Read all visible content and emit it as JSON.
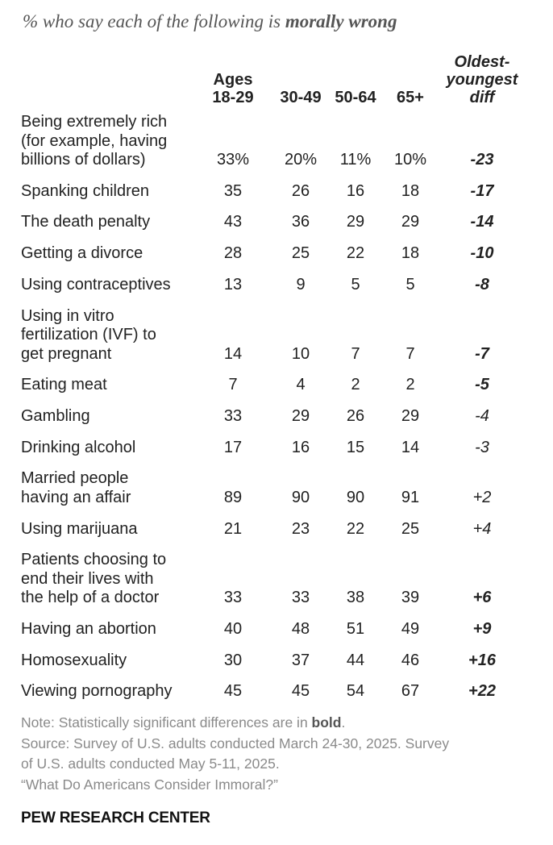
{
  "subtitle": {
    "prefix": "% who say each of the following is ",
    "emphasis": "morally wrong"
  },
  "chart_data": {
    "type": "table",
    "title": "",
    "columns": [
      {
        "key": "a18",
        "label": "Ages 18-29",
        "label_lines": [
          "Ages",
          "18-29"
        ]
      },
      {
        "key": "a30",
        "label": "30-49",
        "label_lines": [
          "30-49"
        ]
      },
      {
        "key": "a50",
        "label": "50-64",
        "label_lines": [
          "50-64"
        ]
      },
      {
        "key": "a65",
        "label": "65+",
        "label_lines": [
          "65+"
        ]
      },
      {
        "key": "diff",
        "label": "Oldest-youngest diff",
        "label_lines": [
          "Oldest-",
          "youngest",
          "diff"
        ]
      }
    ],
    "rows": [
      {
        "label_lines": [
          "Being extremely rich",
          "(for example, having",
          "billions of dollars)"
        ],
        "values": [
          "33%",
          "20%",
          "11%",
          "10%"
        ],
        "diff": "-23",
        "significant": true
      },
      {
        "label_lines": [
          "Spanking children"
        ],
        "values": [
          "35",
          "26",
          "16",
          "18"
        ],
        "diff": "-17",
        "significant": true
      },
      {
        "label_lines": [
          "The death penalty"
        ],
        "values": [
          "43",
          "36",
          "29",
          "29"
        ],
        "diff": "-14",
        "significant": true
      },
      {
        "label_lines": [
          "Getting a divorce"
        ],
        "values": [
          "28",
          "25",
          "22",
          "18"
        ],
        "diff": "-10",
        "significant": true
      },
      {
        "label_lines": [
          "Using contraceptives"
        ],
        "values": [
          "13",
          "9",
          "5",
          "5"
        ],
        "diff": "-8",
        "significant": true
      },
      {
        "label_lines": [
          "Using in vitro",
          "fertilization (IVF) to",
          "get pregnant"
        ],
        "values": [
          "14",
          "10",
          "7",
          "7"
        ],
        "diff": "-7",
        "significant": true
      },
      {
        "label_lines": [
          "Eating meat"
        ],
        "values": [
          "7",
          "4",
          "2",
          "2"
        ],
        "diff": "-5",
        "significant": true
      },
      {
        "label_lines": [
          "Gambling"
        ],
        "values": [
          "33",
          "29",
          "26",
          "29"
        ],
        "diff": "-4",
        "significant": false
      },
      {
        "label_lines": [
          "Drinking alcohol"
        ],
        "values": [
          "17",
          "16",
          "15",
          "14"
        ],
        "diff": "-3",
        "significant": false
      },
      {
        "label_lines": [
          "Married people",
          "having an affair"
        ],
        "values": [
          "89",
          "90",
          "90",
          "91"
        ],
        "diff": "+2",
        "significant": false
      },
      {
        "label_lines": [
          "Using marijuana"
        ],
        "values": [
          "21",
          "23",
          "22",
          "25"
        ],
        "diff": "+4",
        "significant": false
      },
      {
        "label_lines": [
          "Patients choosing to",
          "end their lives with",
          "the help of a doctor"
        ],
        "values": [
          "33",
          "33",
          "38",
          "39"
        ],
        "diff": "+6",
        "significant": true
      },
      {
        "label_lines": [
          "Having an abortion"
        ],
        "values": [
          "40",
          "48",
          "51",
          "49"
        ],
        "diff": "+9",
        "significant": true
      },
      {
        "label_lines": [
          "Homosexuality"
        ],
        "values": [
          "30",
          "37",
          "44",
          "46"
        ],
        "diff": "+16",
        "significant": true
      },
      {
        "label_lines": [
          "Viewing pornography"
        ],
        "values": [
          "45",
          "45",
          "54",
          "67"
        ],
        "diff": "+22",
        "significant": true
      }
    ]
  },
  "notes": {
    "note_prefix": "Note: Statistically significant differences are in ",
    "note_bold": "bold",
    "note_suffix": ".",
    "source_line1": "Source: Survey of U.S. adults conducted March 24-30, 2025. Survey",
    "source_line2": "of U.S. adults conducted May 5-11, 2025.",
    "report_title": "“What Do Americans Consider Immoral?”"
  },
  "brand": "PEW RESEARCH CENTER"
}
